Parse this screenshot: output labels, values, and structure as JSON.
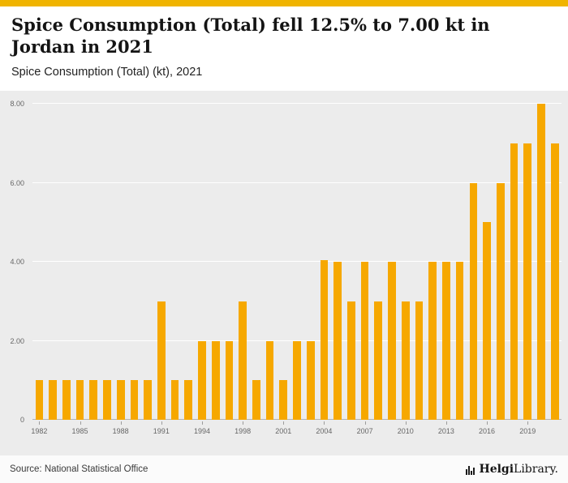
{
  "header": {
    "title": "Spice Consumption (Total) fell 12.5% to 7.00 kt in Jordan in 2021",
    "subtitle": "Spice Consumption (Total) (kt), 2021"
  },
  "chart_data": {
    "type": "bar",
    "title": "Spice Consumption (Total) fell 12.5% to 7.00 kt in Jordan in 2021",
    "subtitle": "Spice Consumption (Total) (kt), 2021",
    "xlabel": "",
    "ylabel": "Spice Consumption (Total) (kt)",
    "ylim": [
      0,
      8
    ],
    "yticks": [
      0,
      2,
      4,
      6,
      8
    ],
    "ytick_labels": [
      "0",
      "2.00",
      "4.00",
      "6.00",
      "8.00"
    ],
    "grid": true,
    "legend": false,
    "categories": [
      1982,
      1983,
      1984,
      1985,
      1986,
      1987,
      1988,
      1989,
      1990,
      1991,
      1992,
      1993,
      1994,
      1995,
      1996,
      1998,
      1999,
      2000,
      2001,
      2002,
      2003,
      2004,
      2005,
      2006,
      2007,
      2008,
      2009,
      2010,
      2011,
      2012,
      2013,
      2014,
      2015,
      2016,
      2017,
      2018,
      2019,
      2020,
      2021
    ],
    "values": [
      1,
      1,
      1,
      1,
      1,
      1,
      1,
      1,
      1,
      3,
      1,
      1,
      2,
      2,
      2,
      3,
      1,
      2,
      1,
      2,
      2,
      4.05,
      4,
      3,
      4,
      3,
      4,
      3,
      3,
      4,
      4,
      4,
      6,
      5,
      6,
      7,
      7,
      8,
      7
    ],
    "xtick_labels": [
      "1982",
      "1985",
      "1988",
      "1991",
      "1994",
      "1998",
      "2001",
      "2004",
      "2007",
      "2010",
      "2013",
      "2016",
      "2019"
    ],
    "label_every_n": 3
  },
  "footer": {
    "source": "Source: National Statistical Office",
    "logo_bold": "Helgi",
    "logo_regular": "Library."
  },
  "colors": {
    "accent": "#F0B400",
    "bar": "#F6A800",
    "chart_bg": "#ECECEC"
  }
}
